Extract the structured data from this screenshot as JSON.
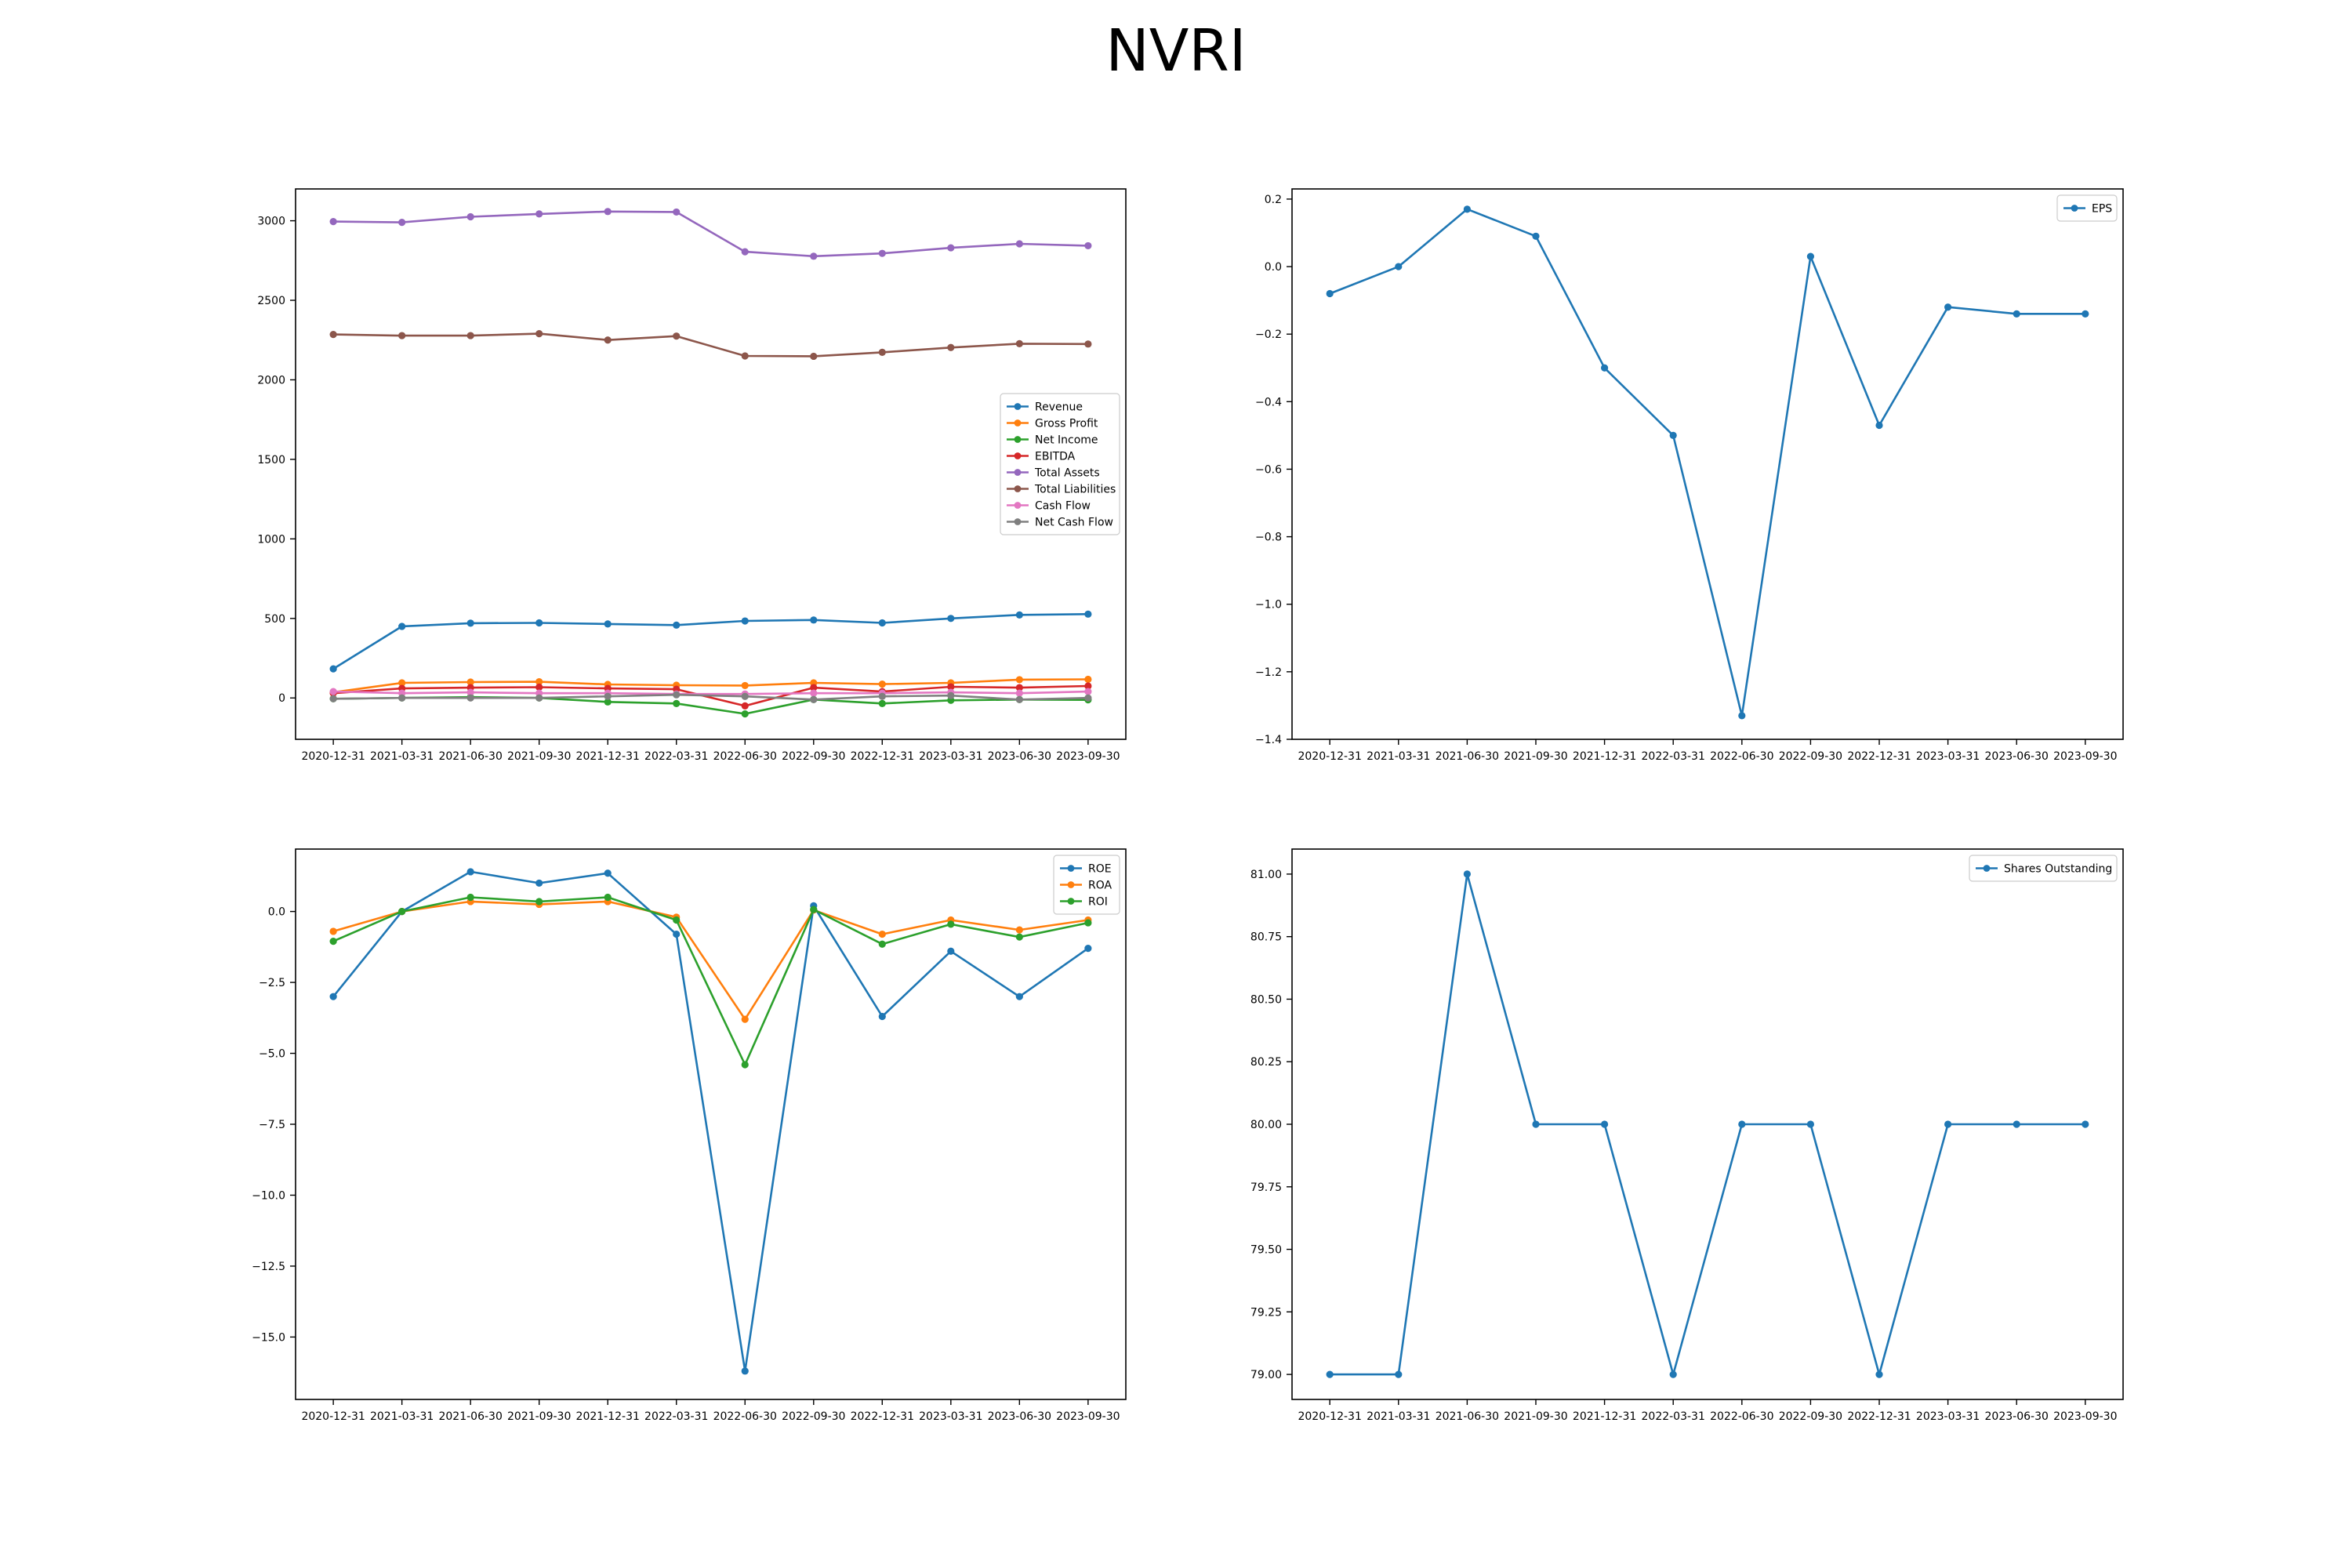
{
  "title": "NVRI",
  "chart_data": [
    {
      "id": "fundamentals",
      "type": "line",
      "categories": [
        "2020-12-31",
        "2021-03-31",
        "2021-06-30",
        "2021-09-30",
        "2021-12-31",
        "2022-03-31",
        "2022-06-30",
        "2022-09-30",
        "2022-12-31",
        "2023-03-31",
        "2023-06-30",
        "2023-09-30"
      ],
      "ylim": [
        -260,
        3200
      ],
      "yticks": [
        0,
        500,
        1000,
        1500,
        2000,
        2500,
        3000
      ],
      "ytick_labels": [
        "0",
        "500",
        "1000",
        "1500",
        "2000",
        "2500",
        "3000"
      ],
      "legend_position": "center-right",
      "grid": false,
      "series": [
        {
          "name": "Revenue",
          "color": "#1f77b4",
          "values": [
            183,
            450,
            470,
            472,
            465,
            458,
            484,
            490,
            472,
            500,
            522,
            527
          ]
        },
        {
          "name": "Gross Profit",
          "color": "#ff7f0e",
          "values": [
            35,
            95,
            100,
            102,
            85,
            80,
            78,
            95,
            87,
            95,
            115,
            117
          ]
        },
        {
          "name": "Net Income",
          "color": "#2ca02c",
          "values": [
            -5,
            0,
            5,
            0,
            -25,
            -35,
            -100,
            -10,
            -35,
            -15,
            -10,
            -12
          ]
        },
        {
          "name": "EBITDA",
          "color": "#d62728",
          "values": [
            30,
            60,
            65,
            68,
            60,
            55,
            -50,
            65,
            40,
            70,
            65,
            75
          ]
        },
        {
          "name": "Total Assets",
          "color": "#9467bd",
          "values": [
            2995,
            2990,
            3025,
            3043,
            3058,
            3055,
            2805,
            2777,
            2795,
            2830,
            2855,
            2843
          ]
        },
        {
          "name": "Total Liabilities",
          "color": "#8c564b",
          "values": [
            2285,
            2278,
            2278,
            2290,
            2250,
            2275,
            2150,
            2148,
            2173,
            2203,
            2227,
            2225
          ]
        },
        {
          "name": "Cash Flow",
          "color": "#e377c2",
          "values": [
            40,
            30,
            35,
            30,
            30,
            25,
            25,
            30,
            30,
            35,
            30,
            40
          ]
        },
        {
          "name": "Net Cash Flow",
          "color": "#7f7f7f",
          "values": [
            -5,
            0,
            0,
            0,
            10,
            20,
            10,
            -10,
            10,
            15,
            -10,
            0
          ]
        }
      ]
    },
    {
      "id": "eps",
      "type": "line",
      "categories": [
        "2020-12-31",
        "2021-03-31",
        "2021-06-30",
        "2021-09-30",
        "2021-12-31",
        "2022-03-31",
        "2022-06-30",
        "2022-09-30",
        "2022-12-31",
        "2023-03-31",
        "2023-06-30",
        "2023-09-30"
      ],
      "ylim": [
        -1.4,
        0.23
      ],
      "yticks": [
        -1.4,
        -1.2,
        -1.0,
        -0.8,
        -0.6,
        -0.4,
        -0.2,
        0.0,
        0.2
      ],
      "ytick_labels": [
        "−1.4",
        "−1.2",
        "−1.0",
        "−0.8",
        "−0.6",
        "−0.4",
        "−0.2",
        "0.0",
        "0.2"
      ],
      "legend_position": "top-right",
      "grid": false,
      "series": [
        {
          "name": "EPS",
          "color": "#1f77b4",
          "values": [
            -0.08,
            0.0,
            0.17,
            0.09,
            -0.3,
            -0.5,
            -1.33,
            0.03,
            -0.47,
            -0.12,
            -0.14,
            -0.14
          ]
        }
      ]
    },
    {
      "id": "returns",
      "type": "line",
      "categories": [
        "2020-12-31",
        "2021-03-31",
        "2021-06-30",
        "2021-09-30",
        "2021-12-31",
        "2022-03-31",
        "2022-06-30",
        "2022-09-30",
        "2022-12-31",
        "2023-03-31",
        "2023-06-30",
        "2023-09-30"
      ],
      "ylim": [
        -17.2,
        2.2
      ],
      "yticks": [
        -15.0,
        -12.5,
        -10.0,
        -7.5,
        -5.0,
        -2.5,
        0.0
      ],
      "ytick_labels": [
        "−15.0",
        "−12.5",
        "−10.0",
        "−7.5",
        "−5.0",
        "−2.5",
        "0.0"
      ],
      "legend_position": "top-right",
      "grid": false,
      "series": [
        {
          "name": "ROE",
          "color": "#1f77b4",
          "values": [
            -3.0,
            0.0,
            1.4,
            1.0,
            1.35,
            -0.8,
            -16.2,
            0.2,
            -3.7,
            -1.4,
            -3.0,
            -1.3
          ]
        },
        {
          "name": "ROA",
          "color": "#ff7f0e",
          "values": [
            -0.7,
            0.0,
            0.35,
            0.25,
            0.35,
            -0.2,
            -3.8,
            0.05,
            -0.8,
            -0.3,
            -0.65,
            -0.3
          ]
        },
        {
          "name": "ROI",
          "color": "#2ca02c",
          "values": [
            -1.05,
            0.0,
            0.5,
            0.35,
            0.5,
            -0.3,
            -5.4,
            0.07,
            -1.15,
            -0.45,
            -0.9,
            -0.4
          ]
        }
      ]
    },
    {
      "id": "shares",
      "type": "line",
      "categories": [
        "2020-12-31",
        "2021-03-31",
        "2021-06-30",
        "2021-09-30",
        "2021-12-31",
        "2022-03-31",
        "2022-06-30",
        "2022-09-30",
        "2022-12-31",
        "2023-03-31",
        "2023-06-30",
        "2023-09-30"
      ],
      "ylim": [
        78.9,
        81.1
      ],
      "yticks": [
        79.0,
        79.25,
        79.5,
        79.75,
        80.0,
        80.25,
        80.5,
        80.75,
        81.0
      ],
      "ytick_labels": [
        "79.00",
        "79.25",
        "79.50",
        "79.75",
        "80.00",
        "80.25",
        "80.50",
        "80.75",
        "81.00"
      ],
      "legend_position": "top-right",
      "grid": false,
      "series": [
        {
          "name": "Shares Outstanding",
          "color": "#1f77b4",
          "values": [
            79,
            79,
            81,
            80,
            80,
            79,
            80,
            80,
            79,
            80,
            80,
            80
          ]
        }
      ]
    }
  ]
}
